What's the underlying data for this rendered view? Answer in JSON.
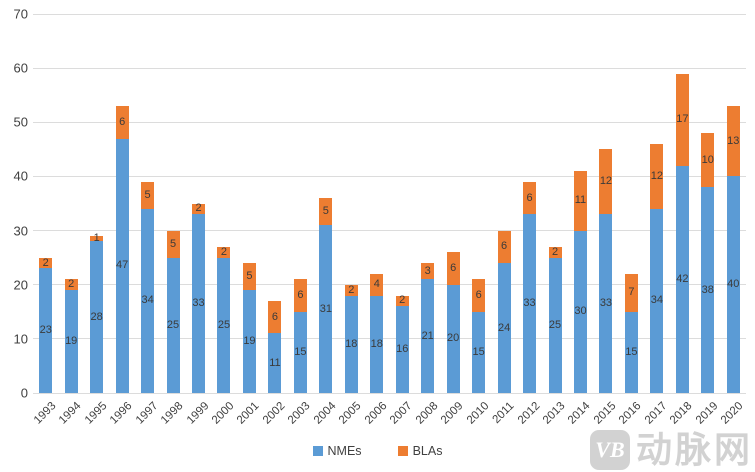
{
  "chart_data": {
    "type": "bar",
    "stacked": true,
    "title": "",
    "xlabel": "",
    "ylabel": "",
    "categories": [
      "1993",
      "1994",
      "1995",
      "1996",
      "1997",
      "1998",
      "1999",
      "2000",
      "2001",
      "2002",
      "2003",
      "2004",
      "2005",
      "2006",
      "2007",
      "2008",
      "2009",
      "2010",
      "2011",
      "2012",
      "2013",
      "2014",
      "2015",
      "2016",
      "2017",
      "2018",
      "2019",
      "2020"
    ],
    "series": [
      {
        "name": "NMEs",
        "color": "#5B9BD5",
        "values": [
          23,
          19,
          28,
          47,
          34,
          25,
          33,
          25,
          19,
          11,
          15,
          31,
          18,
          18,
          16,
          21,
          20,
          15,
          24,
          33,
          25,
          30,
          33,
          15,
          34,
          42,
          38,
          40
        ]
      },
      {
        "name": "BLAs",
        "color": "#ED7D31",
        "values": [
          2,
          2,
          1,
          6,
          5,
          5,
          2,
          2,
          5,
          6,
          6,
          5,
          2,
          4,
          2,
          3,
          6,
          6,
          6,
          6,
          2,
          11,
          12,
          7,
          12,
          17,
          10,
          13
        ]
      }
    ],
    "ylim": [
      0,
      70
    ],
    "yticks": [
      0,
      10,
      20,
      30,
      40,
      50,
      60,
      70
    ],
    "grid": true,
    "data_labels": "center",
    "legend_position": "bottom"
  },
  "legend": {
    "items": [
      {
        "label": "NMEs",
        "color": "#5B9BD5"
      },
      {
        "label": "BLAs",
        "color": "#ED7D31"
      }
    ]
  },
  "watermark": {
    "badge": "VB",
    "text": "动脉网",
    "color": "#cbcbcb"
  },
  "colors": {
    "nme": "#5B9BD5",
    "bla": "#ED7D31",
    "gridline": "#dcdcdc",
    "label_text": "#404040"
  }
}
